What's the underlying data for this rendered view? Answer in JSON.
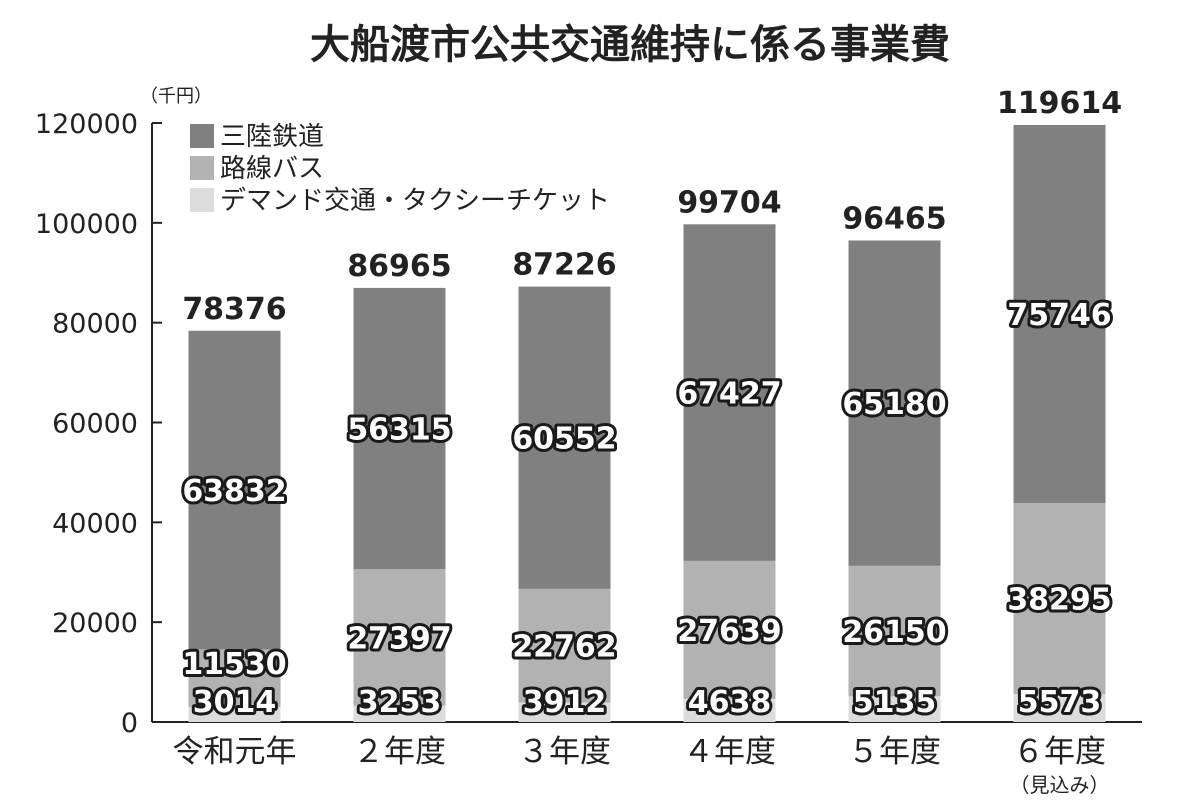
{
  "chart_data": {
    "type": "bar",
    "stacked": true,
    "title": "大船渡市公共交通維持に係る事業費",
    "unit_label": "（千円）",
    "ylim": [
      0,
      120000
    ],
    "yticks": [
      "0",
      "20000",
      "40000",
      "60000",
      "80000",
      "100000",
      "120000"
    ],
    "categories": [
      "令和元年",
      "２年度",
      "３年度",
      "４年度",
      "５年度",
      "６年度"
    ],
    "category_notes": [
      "",
      "",
      "",
      "",
      "",
      "（見込み）"
    ],
    "series": [
      {
        "name": "デマンド交通・タクシーチケット",
        "color": "#dcdcdc",
        "values": [
          3014,
          3253,
          3912,
          4638,
          5135,
          5573
        ]
      },
      {
        "name": "路線バス",
        "color": "#b2b2b2",
        "values": [
          11530,
          27397,
          22762,
          27639,
          26150,
          38295
        ]
      },
      {
        "name": "三陸鉄道",
        "color": "#808080",
        "values": [
          63832,
          56315,
          60552,
          67427,
          65180,
          75746
        ]
      }
    ],
    "totals": [
      "78376",
      "86965",
      "87226",
      "99704",
      "96465",
      "119614"
    ],
    "legend_order": [
      2,
      1,
      0
    ],
    "legend": "top-left",
    "grid": false
  }
}
